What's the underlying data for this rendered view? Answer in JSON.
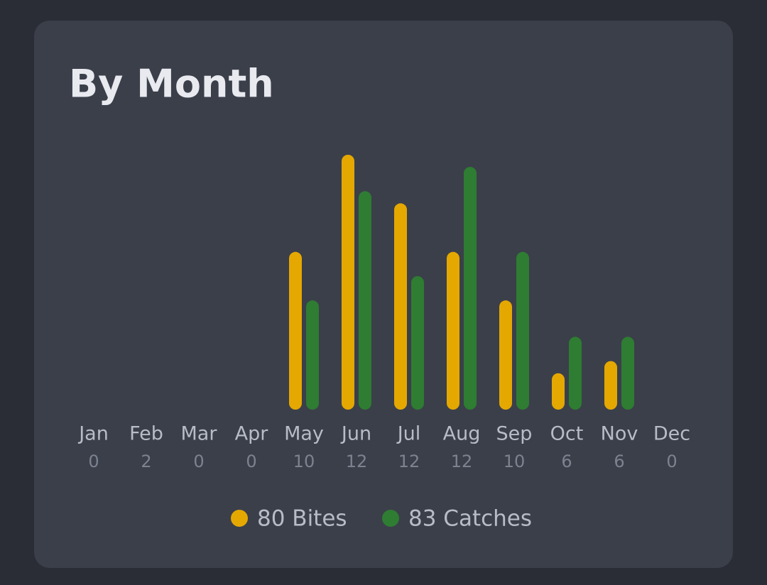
{
  "chart_data": {
    "type": "bar",
    "title": "By Month",
    "categories": [
      "Jan",
      "Feb",
      "Mar",
      "Apr",
      "May",
      "Jun",
      "Jul",
      "Aug",
      "Sep",
      "Oct",
      "Nov",
      "Dec"
    ],
    "counts": [
      0,
      2,
      0,
      0,
      10,
      12,
      12,
      12,
      10,
      6,
      6,
      0
    ],
    "series": [
      {
        "name": "80 Bites",
        "color": "#e5a800",
        "values": [
          0,
          0,
          0,
          0,
          13,
          21,
          17,
          13,
          9,
          3,
          4,
          0
        ]
      },
      {
        "name": "83 Catches",
        "color": "#2e7d32",
        "values": [
          0,
          0,
          0,
          0,
          9,
          18,
          11,
          20,
          13,
          6,
          6,
          0
        ]
      }
    ],
    "ylim": [
      0,
      21
    ],
    "legend": "bottom"
  }
}
